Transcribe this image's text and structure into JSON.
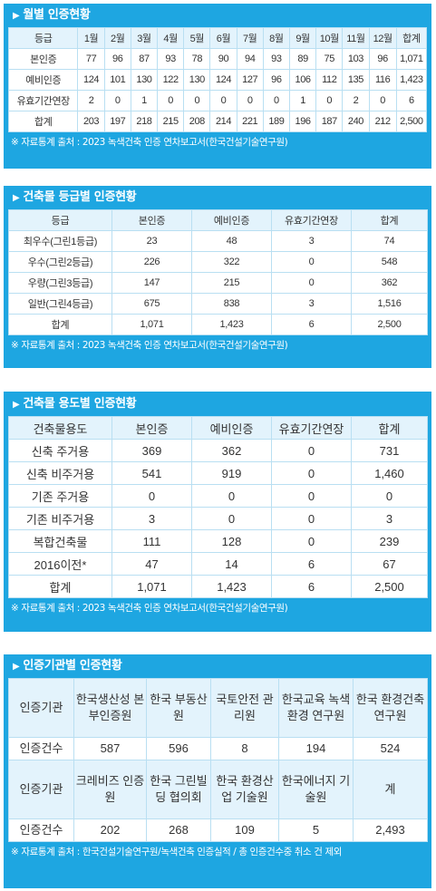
{
  "monthly": {
    "title": "월별 인증현황",
    "header": [
      "등급",
      "1월",
      "2월",
      "3월",
      "4월",
      "5월",
      "6월",
      "7월",
      "8월",
      "9월",
      "10월",
      "11월",
      "12월",
      "합계"
    ],
    "rows": [
      [
        "본인증",
        "77",
        "96",
        "87",
        "93",
        "78",
        "90",
        "94",
        "93",
        "89",
        "75",
        "103",
        "96",
        "1,071"
      ],
      [
        "예비인증",
        "124",
        "101",
        "130",
        "122",
        "130",
        "124",
        "127",
        "96",
        "106",
        "112",
        "135",
        "116",
        "1,423"
      ],
      [
        "유효기간연장",
        "2",
        "0",
        "1",
        "0",
        "0",
        "0",
        "0",
        "0",
        "1",
        "0",
        "2",
        "0",
        "6"
      ],
      [
        "합계",
        "203",
        "197",
        "218",
        "215",
        "208",
        "214",
        "221",
        "189",
        "196",
        "187",
        "240",
        "212",
        "2,500"
      ]
    ],
    "note": "※ 자료통계 출처 : 2023 녹색건축 인증 연차보고서(한국건설기술연구원)"
  },
  "grade": {
    "title": "건축물 등급별 인증현황",
    "header": [
      "등급",
      "본인증",
      "예비인증",
      "유효기간연장",
      "합계"
    ],
    "rows": [
      [
        "최우수(그린1등급)",
        "23",
        "48",
        "3",
        "74"
      ],
      [
        "우수(그린2등급)",
        "226",
        "322",
        "0",
        "548"
      ],
      [
        "우량(그린3등급)",
        "147",
        "215",
        "0",
        "362"
      ],
      [
        "일반(그린4등급)",
        "675",
        "838",
        "3",
        "1,516"
      ],
      [
        "합계",
        "1,071",
        "1,423",
        "6",
        "2,500"
      ]
    ],
    "note": "※ 자료통계 출처 : 2023 녹색건축 인증 연차보고서(한국건설기술연구원)"
  },
  "usage": {
    "title": "건축물 용도별 인증현황",
    "header": [
      "건축물용도",
      "본인증",
      "예비인증",
      "유효기간연장",
      "합계"
    ],
    "rows": [
      [
        "신축 주거용",
        "369",
        "362",
        "0",
        "731"
      ],
      [
        "신축 비주거용",
        "541",
        "919",
        "0",
        "1,460"
      ],
      [
        "기존 주거용",
        "0",
        "0",
        "0",
        "0"
      ],
      [
        "기존 비주거용",
        "3",
        "0",
        "0",
        "3"
      ],
      [
        "복합건축물",
        "111",
        "128",
        "0",
        "239"
      ],
      [
        "2016이전*",
        "47",
        "14",
        "6",
        "67"
      ],
      [
        "합계",
        "1,071",
        "1,423",
        "6",
        "2,500"
      ]
    ],
    "note": "※ 자료통계 출처 : 2023 녹색건축 인증 연차보고서(한국건설기술연구원)"
  },
  "agency": {
    "title": "인증기관별 인증현황",
    "label_agency": "인증기관",
    "label_count": "인증건수",
    "group1": {
      "names": [
        "한국생산성 본부인증원",
        "한국 부동산원",
        "국토안전 관리원",
        "한국교육 녹색환경 연구원",
        "한국 환경건축 연구원"
      ],
      "counts": [
        "587",
        "596",
        "8",
        "194",
        "524"
      ]
    },
    "group2": {
      "names": [
        "크레비즈 인증원",
        "한국 그린빌딩 협의회",
        "한국 환경산업 기술원",
        "한국에너지 기술원",
        "계"
      ],
      "counts": [
        "202",
        "268",
        "109",
        "5",
        "2,493"
      ]
    },
    "note": "※ 자료통계 출처 : 한국건설기술연구원/녹색건축 인증실적 / 총 인증건수중 취소 건 제외"
  }
}
